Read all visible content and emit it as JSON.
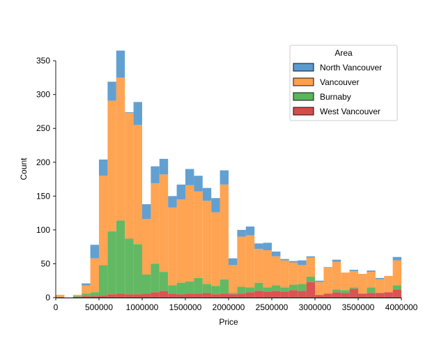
{
  "chart_data": {
    "type": "bar",
    "chart_subtype": "stacked-histogram",
    "xlabel": "Price",
    "ylabel": "Count",
    "xlim": [
      0,
      4000000
    ],
    "ylim": [
      0,
      380
    ],
    "xticks": [
      0,
      500000,
      1000000,
      1500000,
      2000000,
      2500000,
      3000000,
      3500000,
      4000000
    ],
    "yticks": [
      0,
      50,
      100,
      150,
      200,
      250,
      300,
      350
    ],
    "bin_width": 100000,
    "bin_starts": [
      0,
      100000,
      200000,
      300000,
      400000,
      500000,
      600000,
      700000,
      800000,
      900000,
      1000000,
      1100000,
      1200000,
      1300000,
      1400000,
      1500000,
      1600000,
      1700000,
      1800000,
      1900000,
      2000000,
      2100000,
      2200000,
      2300000,
      2400000,
      2500000,
      2600000,
      2700000,
      2800000,
      2900000,
      3000000,
      3100000,
      3200000,
      3300000,
      3400000,
      3500000,
      3600000,
      3700000,
      3800000,
      3900000
    ],
    "legend": {
      "title": "Area",
      "position": "upper-right"
    },
    "grid": false,
    "series": [
      {
        "name": "West Vancouver",
        "color": "#d84b4b",
        "values": [
          0,
          0,
          1,
          2,
          2,
          3,
          5,
          6,
          5,
          5,
          6,
          8,
          10,
          6,
          5,
          6,
          6,
          7,
          5,
          6,
          5,
          6,
          8,
          10,
          9,
          10,
          9,
          11,
          10,
          23,
          4,
          6,
          8,
          7,
          13,
          6,
          7,
          7,
          8,
          12
        ]
      },
      {
        "name": "Burnaby",
        "color": "#5bb55b",
        "values": [
          1,
          0,
          1,
          4,
          6,
          45,
          93,
          108,
          82,
          74,
          28,
          42,
          28,
          12,
          17,
          18,
          23,
          13,
          12,
          21,
          2,
          10,
          7,
          12,
          6,
          8,
          6,
          8,
          10,
          8,
          0,
          0,
          4,
          4,
          2,
          0,
          8,
          0,
          0,
          6
        ]
      },
      {
        "name": "Vancouver",
        "color": "#ff9f4a",
        "values": [
          3,
          0,
          2,
          12,
          50,
          132,
          193,
          211,
          186,
          176,
          82,
          119,
          144,
          115,
          123,
          142,
          128,
          123,
          109,
          140,
          41,
          74,
          77,
          50,
          55,
          43,
          40,
          33,
          28,
          28,
          19,
          38,
          41,
          26,
          24,
          29,
          23,
          20,
          24,
          37
        ]
      },
      {
        "name": "North Vancouver",
        "color": "#5a9bd0",
        "values": [
          0,
          0,
          0,
          3,
          20,
          24,
          28,
          40,
          1,
          34,
          22,
          25,
          23,
          17,
          22,
          24,
          23,
          19,
          21,
          21,
          10,
          10,
          13,
          8,
          11,
          7,
          2,
          2,
          7,
          2,
          2,
          1,
          3,
          0,
          2,
          0,
          2,
          2,
          0,
          5
        ]
      }
    ]
  }
}
